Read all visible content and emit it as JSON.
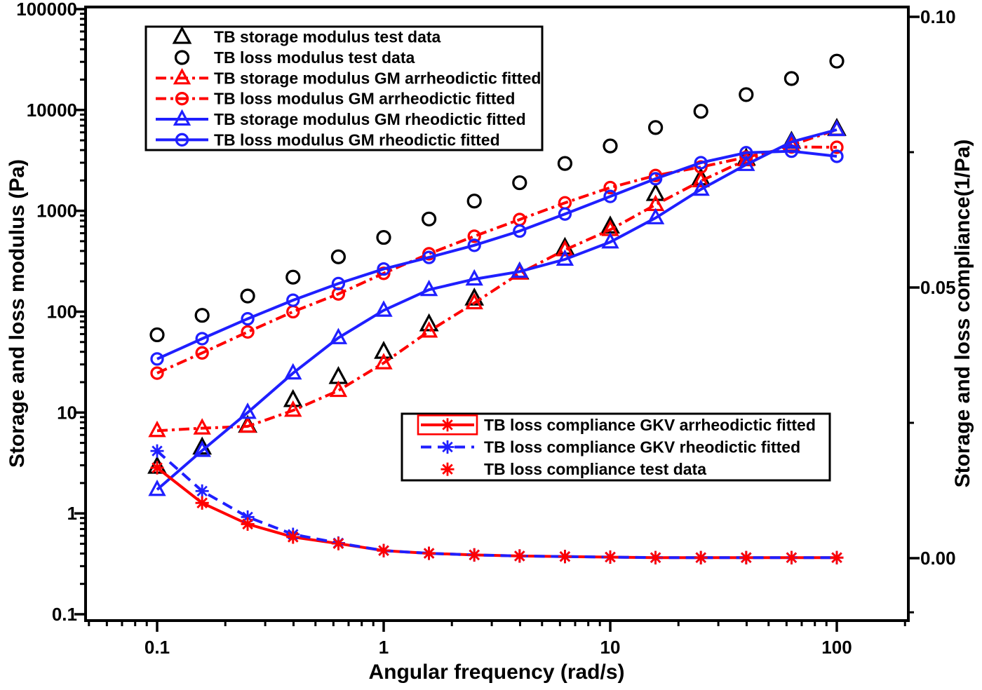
{
  "chart_data": {
    "type": "line",
    "title": "",
    "x": {
      "label": "Angular frequency (rad/s)",
      "scale": "log",
      "range": [
        0.048,
        207
      ],
      "ticks": [
        0.1,
        1,
        10,
        100
      ],
      "tick_labels": [
        "0.1",
        "1",
        "10",
        "100"
      ]
    },
    "y_left": {
      "label": "Storage and loss modulus (Pa)",
      "scale": "log",
      "range": [
        0.086,
        100000
      ],
      "ticks": [
        100000,
        10000,
        1000,
        100,
        10,
        1,
        0.1
      ],
      "tick_labels": [
        "100000",
        "10000",
        "1000",
        "100",
        "10",
        "1",
        "0.1"
      ]
    },
    "y_right": {
      "label": "Storage and loss compliance(1/Pa)",
      "scale": "linear",
      "range": [
        -0.012,
        0.1
      ],
      "ticks": [
        0.1,
        0.05,
        0.0
      ],
      "tick_labels": [
        "0.10",
        "0.05",
        "0.00"
      ],
      "minor_ticks": [
        0.075,
        0.025,
        -0.01
      ]
    },
    "frequencies": [
      0.1,
      0.158,
      0.251,
      0.398,
      0.631,
      1,
      1.585,
      2.512,
      3.981,
      6.31,
      10,
      15.85,
      25.12,
      39.81,
      63.1,
      100
    ],
    "series": [
      {
        "id": "storage_test",
        "label": "TB storage modulus test data",
        "color": "black",
        "line": "none",
        "marker": "triangle",
        "axis": "left",
        "values": [
          2.9,
          4.5,
          7.4,
          13.3,
          22.5,
          40,
          75,
          135,
          245,
          430,
          700,
          1470,
          2100,
          3300,
          4850,
          6500
        ]
      },
      {
        "id": "loss_test",
        "label": "TB loss modulus test data",
        "color": "black",
        "line": "none",
        "marker": "circle",
        "axis": "left",
        "values": [
          59,
          92,
          143,
          220,
          350,
          545,
          830,
          1250,
          1900,
          2950,
          4400,
          6700,
          9700,
          14200,
          20500,
          30500
        ]
      },
      {
        "id": "storage_gm_arr",
        "label": "TB storage modulus GM arrheodictic fitted",
        "color": "red",
        "line": "dashdot",
        "marker": "triangle",
        "axis": "left",
        "values": [
          6.6,
          7.0,
          7.3,
          10.5,
          16.5,
          31,
          64,
          122,
          240,
          410,
          650,
          1150,
          1980,
          3200,
          4500,
          6370
        ]
      },
      {
        "id": "loss_gm_arr",
        "label": "TB loss modulus GM arrheodictic fitted",
        "color": "red",
        "line": "dashdot",
        "marker": "circle",
        "axis": "left",
        "values": [
          24.6,
          39,
          63,
          100,
          150,
          240,
          375,
          560,
          820,
          1200,
          1700,
          2240,
          2720,
          3400,
          4300,
          4270
        ]
      },
      {
        "id": "storage_gm_rheo",
        "label": "TB storage modulus GM rheodictic fitted",
        "color": "blue",
        "line": "solid",
        "marker": "triangle",
        "axis": "left",
        "values": [
          1.72,
          4.2,
          10,
          24.6,
          55,
          103,
          165,
          210,
          250,
          330,
          490,
          850,
          1630,
          2870,
          4820,
          6370
        ]
      },
      {
        "id": "loss_gm_rheo",
        "label": "TB loss modulus GM rheodictic fitted",
        "color": "blue",
        "line": "solid",
        "marker": "circle",
        "axis": "left",
        "values": [
          34,
          54,
          85,
          130,
          190,
          265,
          345,
          455,
          630,
          930,
          1390,
          2080,
          3000,
          3770,
          3900,
          3470
        ]
      },
      {
        "id": "compliance_gkv_arr",
        "label": "TB  loss compliance GKV arrheodictic fitted",
        "color": "red",
        "line": "solid",
        "marker": "asterisk",
        "axis": "right",
        "values": [
          0.0167,
          0.0102,
          0.0063,
          0.0039,
          0.0027,
          0.0014,
          0.0009,
          0.0006,
          0.0004,
          0.0003,
          0.0002,
          0.0001,
          0.0001,
          0.0001,
          0.0001,
          0.0001
        ]
      },
      {
        "id": "compliance_gkv_rheo",
        "label": "TB  loss compliance GKV rheodictic fitted",
        "color": "blue",
        "line": "dashed",
        "marker": "asterisk",
        "axis": "right",
        "values": [
          0.0198,
          0.0124,
          0.0076,
          0.0044,
          0.0028,
          0.0014,
          0.0009,
          0.0006,
          0.0004,
          0.0003,
          0.0002,
          0.0001,
          0.0001,
          0.0001,
          0.0001,
          0.0001
        ]
      },
      {
        "id": "compliance_test",
        "label": "TB loss compliance test data",
        "color": "red",
        "line": "none",
        "marker": "asterisk",
        "axis": "right",
        "values": [
          0.0167,
          0.0102,
          0.0063,
          0.0039,
          0.0027,
          0.0014,
          0.0009,
          0.0006,
          0.0004,
          0.0003,
          0.0002,
          0.0001,
          0.0001,
          0.0001,
          0.0001,
          0.0001
        ]
      }
    ],
    "legends": [
      {
        "name": "moduli-legend",
        "series": [
          "storage_test",
          "loss_test",
          "storage_gm_arr",
          "loss_gm_arr",
          "storage_gm_rheo",
          "loss_gm_rheo"
        ]
      },
      {
        "name": "compliance-legend",
        "series": [
          "compliance_gkv_arr",
          "compliance_gkv_rheo",
          "compliance_test"
        ],
        "boxed": "compliance_gkv_arr"
      }
    ],
    "palette": {
      "black": "#000000",
      "red": "#ff0000",
      "blue": "#1f1fff"
    }
  }
}
